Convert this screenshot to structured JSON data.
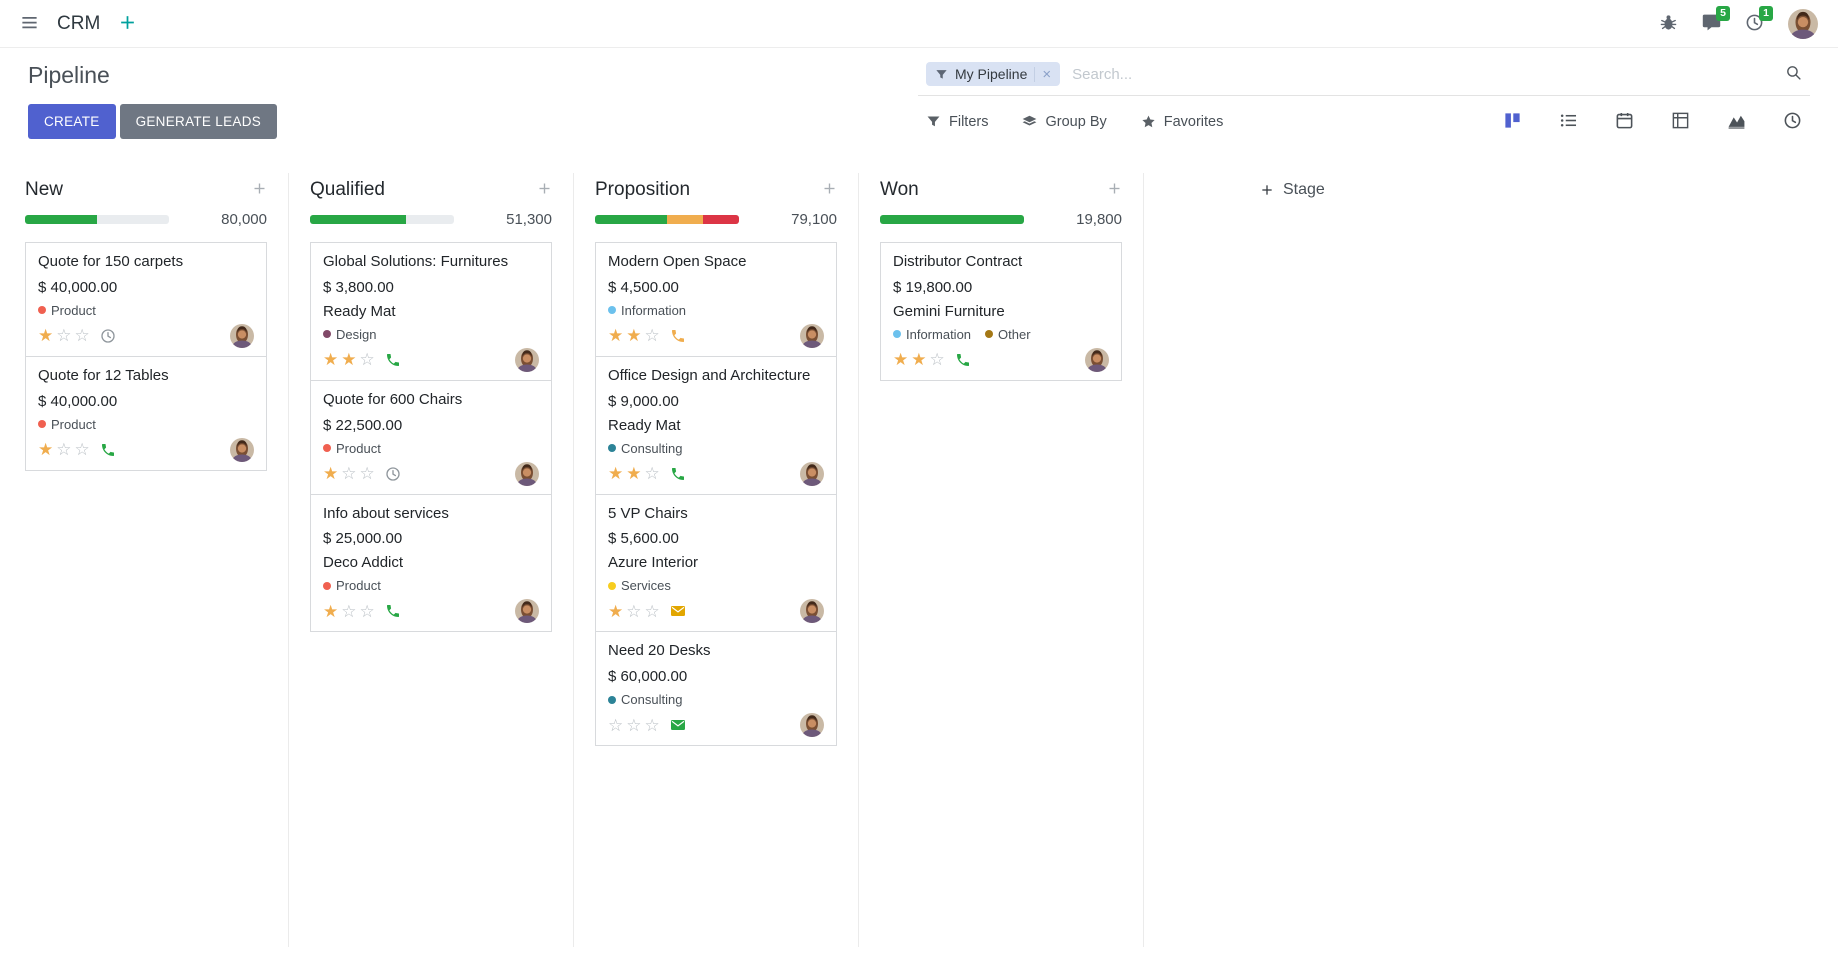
{
  "colors": {
    "primary": "#5061cf",
    "secondary": "#6f7783",
    "success": "#28a745",
    "warning": "#f0ad4e",
    "danger": "#dc3545",
    "muted_bar": "#e9ecef",
    "star_filled": "#f0ad4e",
    "star_empty": "#b9bfc4"
  },
  "navbar": {
    "menu_icon": "menu",
    "app_name": "CRM",
    "add_icon": "plus",
    "bug_icon": "bug",
    "messages_icon": "chat",
    "messages_badge": "5",
    "activities_icon": "clock",
    "activities_badge": "1"
  },
  "control_panel": {
    "title": "Pipeline",
    "search": {
      "facet_icon": "funnel",
      "facet_label": "My Pipeline",
      "facet_remove": "×",
      "placeholder": "Search...",
      "search_icon": "search"
    },
    "create_label": "CREATE",
    "generate_leads_label": "GENERATE LEADS",
    "filter_menus": [
      {
        "icon": "funnel",
        "label": "Filters"
      },
      {
        "icon": "layers",
        "label": "Group By"
      },
      {
        "icon": "star",
        "label": "Favorites"
      }
    ],
    "view_switcher": [
      {
        "name": "kanban",
        "active": true
      },
      {
        "name": "list",
        "active": false
      },
      {
        "name": "calendar",
        "active": false
      },
      {
        "name": "pivot",
        "active": false
      },
      {
        "name": "graph",
        "active": false
      },
      {
        "name": "activity",
        "active": false
      }
    ]
  },
  "kanban": {
    "add_column_label": "Stage",
    "columns": [
      {
        "name": "New",
        "total": "80,000",
        "progress": [
          {
            "state": "success",
            "pct": 50
          }
        ],
        "cards": [
          {
            "title": "Quote for 150 carpets",
            "amount": "$ 40,000.00",
            "partner": null,
            "tags": [
              {
                "label": "Product",
                "color": "#f06050"
              }
            ],
            "stars": 1,
            "activity": {
              "icon": "clock",
              "color": "#8f969c"
            }
          },
          {
            "title": "Quote for 12 Tables",
            "amount": "$ 40,000.00",
            "partner": null,
            "tags": [
              {
                "label": "Product",
                "color": "#f06050"
              }
            ],
            "stars": 1,
            "activity": {
              "icon": "phone",
              "color": "#28a745"
            }
          }
        ]
      },
      {
        "name": "Qualified",
        "total": "51,300",
        "progress": [
          {
            "state": "success",
            "pct": 67
          }
        ],
        "cards": [
          {
            "title": "Global Solutions: Furnitures",
            "amount": "$ 3,800.00",
            "partner": "Ready Mat",
            "tags": [
              {
                "label": "Design",
                "color": "#814968"
              }
            ],
            "stars": 2,
            "activity": {
              "icon": "phone",
              "color": "#28a745"
            }
          },
          {
            "title": "Quote for 600 Chairs",
            "amount": "$ 22,500.00",
            "partner": null,
            "tags": [
              {
                "label": "Product",
                "color": "#f06050"
              }
            ],
            "stars": 1,
            "activity": {
              "icon": "clock",
              "color": "#8f969c"
            }
          },
          {
            "title": "Info about services",
            "amount": "$ 25,000.00",
            "partner": "Deco Addict",
            "tags": [
              {
                "label": "Product",
                "color": "#f06050"
              }
            ],
            "stars": 1,
            "activity": {
              "icon": "phone",
              "color": "#28a745"
            }
          }
        ]
      },
      {
        "name": "Proposition",
        "total": "79,100",
        "progress": [
          {
            "state": "success",
            "pct": 50
          },
          {
            "state": "warning",
            "pct": 25
          },
          {
            "state": "danger",
            "pct": 25
          }
        ],
        "cards": [
          {
            "title": "Modern Open Space",
            "amount": "$ 4,500.00",
            "partner": null,
            "tags": [
              {
                "label": "Information",
                "color": "#6cc1ed"
              }
            ],
            "stars": 2,
            "activity": {
              "icon": "phone",
              "color": "#f0ad4e"
            }
          },
          {
            "title": "Office Design and Architecture",
            "amount": "$ 9,000.00",
            "partner": "Ready Mat",
            "tags": [
              {
                "label": "Consulting",
                "color": "#2c8397"
              }
            ],
            "stars": 2,
            "activity": {
              "icon": "phone",
              "color": "#28a745"
            }
          },
          {
            "title": "5 VP Chairs",
            "amount": "$ 5,600.00",
            "partner": "Azure Interior",
            "tags": [
              {
                "label": "Services",
                "color": "#f7cd1f"
              }
            ],
            "stars": 1,
            "activity": {
              "icon": "envelope",
              "color": "#e2a600"
            }
          },
          {
            "title": "Need 20 Desks",
            "amount": "$ 60,000.00",
            "partner": null,
            "tags": [
              {
                "label": "Consulting",
                "color": "#2c8397"
              }
            ],
            "stars": 0,
            "activity": {
              "icon": "envelope",
              "color": "#28a745"
            }
          }
        ]
      },
      {
        "name": "Won",
        "total": "19,800",
        "progress": [
          {
            "state": "success",
            "pct": 100
          }
        ],
        "cards": [
          {
            "title": "Distributor Contract",
            "amount": "$ 19,800.00",
            "partner": "Gemini Furniture",
            "tags": [
              {
                "label": "Information",
                "color": "#6cc1ed"
              },
              {
                "label": "Other",
                "color": "#a47816"
              }
            ],
            "stars": 2,
            "activity": {
              "icon": "phone",
              "color": "#28a745"
            }
          }
        ]
      }
    ]
  }
}
